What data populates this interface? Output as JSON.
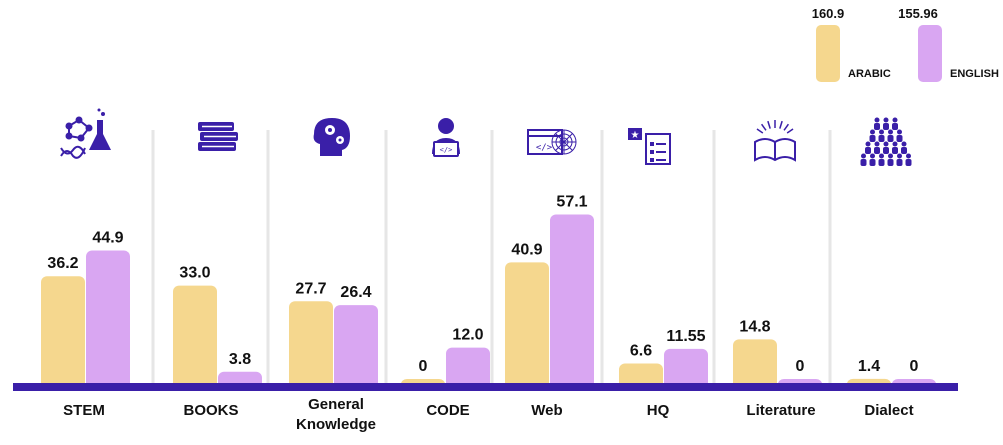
{
  "colors": {
    "arabic": "#f5d78e",
    "english": "#d9a6f2",
    "axis": "#3a1fa8",
    "icon": "#3a1fa8",
    "separator": "#e6e6e6"
  },
  "legend": [
    {
      "name": "ARABIC",
      "total": "160.9"
    },
    {
      "name": "ENGLISH",
      "total": "155.96"
    }
  ],
  "chart_data": {
    "type": "bar",
    "categories": [
      "STEM",
      "BOOKS",
      "General Knowledge",
      "CODE",
      "Web",
      "HQ",
      "Literature",
      "Dialect"
    ],
    "category_labels": [
      [
        "STEM"
      ],
      [
        "BOOKS"
      ],
      [
        "General",
        "Knowledge"
      ],
      [
        "CODE"
      ],
      [
        "Web"
      ],
      [
        "HQ"
      ],
      [
        "Literature"
      ],
      [
        "Dialect"
      ]
    ],
    "category_icons": [
      "stem-icon",
      "books-icon",
      "head-gears-icon",
      "coder-icon",
      "web-icon",
      "checklist-icon",
      "open-book-icon",
      "people-group-icon"
    ],
    "series": [
      {
        "name": "ARABIC",
        "values": [
          36.2,
          33.0,
          27.7,
          0,
          40.9,
          6.6,
          14.8,
          1.4
        ],
        "labels": [
          "36.2",
          "33.0",
          "27.7",
          "0",
          "40.9",
          "6.6",
          "14.8",
          "1.4"
        ]
      },
      {
        "name": "ENGLISH",
        "values": [
          44.9,
          3.8,
          26.4,
          12.0,
          57.1,
          11.55,
          0,
          0
        ],
        "labels": [
          "44.9",
          "3.8",
          "26.4",
          "12.0",
          "57.1",
          "11.55",
          "0",
          "0"
        ]
      }
    ],
    "ylim": [
      0,
      60
    ],
    "grid": false,
    "legend_position": "top-right"
  }
}
